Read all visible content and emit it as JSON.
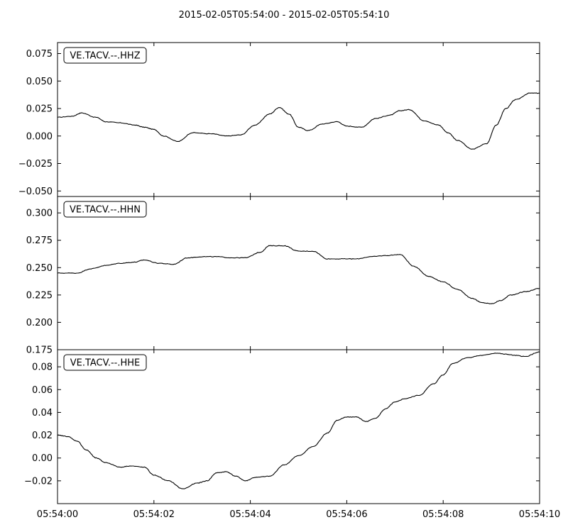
{
  "chart_data": {
    "type": "line",
    "title": "2015-02-05T05:54:00  -  2015-02-05T05:54:10",
    "x_ticks": [
      "05:54:00",
      "05:54:02",
      "05:54:04",
      "05:54:06",
      "05:54:08",
      "05:54:10"
    ],
    "x_range": [
      "05:54:00",
      "05:54:10"
    ],
    "grid": false,
    "color": "#000000",
    "panels": [
      {
        "label": "VE.TACV.--.HHZ",
        "ylim": [
          -0.055,
          0.085
        ],
        "y_ticks": [
          "0.075",
          "0.050",
          "0.025",
          "0.000",
          "−0.025",
          "−0.050"
        ],
        "y_tick_values": [
          0.075,
          0.05,
          0.025,
          0.0,
          -0.025,
          -0.05
        ],
        "x": [
          0,
          0.3,
          0.5,
          0.8,
          1.0,
          1.3,
          1.6,
          1.8,
          2.0,
          2.2,
          2.5,
          2.8,
          3.2,
          3.5,
          3.8,
          4.1,
          4.4,
          4.6,
          4.8,
          5.0,
          5.2,
          5.5,
          5.8,
          6.0,
          6.3,
          6.6,
          6.9,
          7.1,
          7.3,
          7.6,
          7.9,
          8.1,
          8.3,
          8.6,
          8.9,
          9.1,
          9.3,
          9.5,
          9.8,
          10.0
        ],
        "y": [
          0.017,
          0.018,
          0.021,
          0.017,
          0.013,
          0.012,
          0.01,
          0.008,
          0.006,
          0.0,
          -0.005,
          0.003,
          0.002,
          0.0,
          0.001,
          0.01,
          0.02,
          0.026,
          0.02,
          0.008,
          0.005,
          0.011,
          0.013,
          0.009,
          0.008,
          0.016,
          0.019,
          0.023,
          0.024,
          0.014,
          0.01,
          0.003,
          -0.004,
          -0.012,
          -0.007,
          0.01,
          0.025,
          0.033,
          0.039,
          0.039
        ]
      },
      {
        "label": "VE.TACV.--.HHN",
        "ylim": [
          0.175,
          0.315
        ],
        "y_ticks": [
          "0.300",
          "0.275",
          "0.250",
          "0.225",
          "0.200",
          "0.175"
        ],
        "y_tick_values": [
          0.3,
          0.275,
          0.25,
          0.225,
          0.2,
          0.175
        ],
        "x": [
          0,
          0.4,
          0.7,
          1.0,
          1.3,
          1.6,
          1.8,
          2.1,
          2.4,
          2.7,
          3.0,
          3.3,
          3.6,
          3.9,
          4.2,
          4.4,
          4.7,
          5.0,
          5.3,
          5.6,
          5.9,
          6.2,
          6.5,
          6.8,
          7.1,
          7.4,
          7.7,
          8.0,
          8.3,
          8.6,
          8.8,
          9.0,
          9.2,
          9.4,
          9.7,
          10.0
        ],
        "y": [
          0.245,
          0.245,
          0.249,
          0.252,
          0.254,
          0.255,
          0.257,
          0.254,
          0.253,
          0.259,
          0.26,
          0.26,
          0.259,
          0.259,
          0.264,
          0.27,
          0.27,
          0.265,
          0.265,
          0.258,
          0.258,
          0.258,
          0.26,
          0.261,
          0.262,
          0.251,
          0.242,
          0.237,
          0.23,
          0.222,
          0.218,
          0.217,
          0.22,
          0.225,
          0.228,
          0.231
        ]
      },
      {
        "label": "VE.TACV.--.HHE",
        "ylim": [
          -0.04,
          0.095
        ],
        "y_ticks": [
          "0.08",
          "0.06",
          "0.04",
          "0.02",
          "0.00",
          "−0.02"
        ],
        "y_tick_values": [
          0.08,
          0.06,
          0.04,
          0.02,
          0.0,
          -0.02
        ],
        "x": [
          0,
          0.2,
          0.4,
          0.6,
          0.8,
          1.0,
          1.3,
          1.5,
          1.8,
          2.0,
          2.3,
          2.6,
          2.9,
          3.1,
          3.3,
          3.5,
          3.7,
          3.9,
          4.1,
          4.4,
          4.7,
          5.0,
          5.3,
          5.6,
          5.8,
          6.0,
          6.2,
          6.4,
          6.6,
          6.8,
          7.0,
          7.2,
          7.5,
          7.8,
          8.0,
          8.2,
          8.5,
          8.8,
          9.1,
          9.3,
          9.5,
          9.7,
          10.0
        ],
        "y": [
          0.02,
          0.019,
          0.015,
          0.007,
          0.0,
          -0.004,
          -0.008,
          -0.007,
          -0.008,
          -0.015,
          -0.02,
          -0.027,
          -0.022,
          -0.02,
          -0.013,
          -0.012,
          -0.016,
          -0.02,
          -0.017,
          -0.016,
          -0.006,
          0.002,
          0.01,
          0.022,
          0.033,
          0.036,
          0.036,
          0.032,
          0.035,
          0.043,
          0.049,
          0.052,
          0.055,
          0.065,
          0.073,
          0.083,
          0.088,
          0.09,
          0.092,
          0.091,
          0.09,
          0.089,
          0.093
        ]
      }
    ]
  }
}
